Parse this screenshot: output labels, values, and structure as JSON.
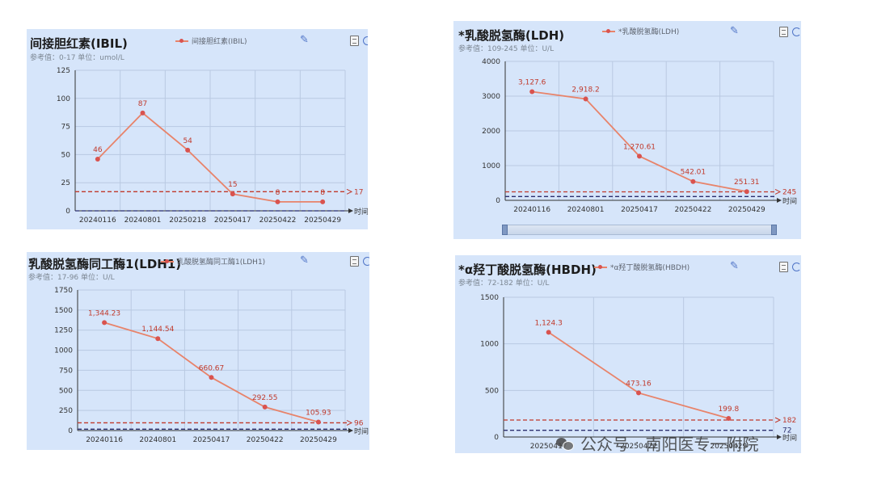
{
  "colors": {
    "panel_bg": "#d6e5fa",
    "line": "#e8836a",
    "point": "#d9534f",
    "label": "#c0392b",
    "upper_ref": "#c0392b",
    "lower_ref": "#2b2f6e",
    "grid": "#b9c9e2",
    "axis": "#333333"
  },
  "icons": [
    "pencil-edit-icon",
    "document-icon",
    "refresh-icon",
    "wechat-icon"
  ],
  "watermark": {
    "left": "公众号",
    "dot": "·",
    "right": "南阳医专一附院"
  },
  "chart_data": [
    {
      "type": "line",
      "title": "间接胆红素(IBIL)",
      "legend": "间接胆红素(IBIL)",
      "reference": "参考值：0-17  单位：umol/L",
      "categories": [
        "20240116",
        "20240801",
        "20250218",
        "20250417",
        "20250422",
        "20250429"
      ],
      "values": [
        46,
        87,
        54,
        15,
        8,
        8
      ],
      "data_labels": [
        "46",
        "87",
        "54",
        "15",
        "8",
        "8"
      ],
      "ylim": [
        0,
        125
      ],
      "yticks": [
        "0",
        "25",
        "50",
        "75",
        "100",
        "125"
      ],
      "ref_upper": 17,
      "ref_upper_label": "17",
      "ref_lower": 0,
      "x_unit": "时间",
      "grid": true
    },
    {
      "type": "line",
      "title": "*乳酸脱氢酶(LDH)",
      "legend": "*乳酸脱氢酶(LDH)",
      "reference": "参考值：109-245  单位：U/L",
      "categories": [
        "20240116",
        "20240801",
        "20250417",
        "20250422",
        "20250429"
      ],
      "values": [
        3127.6,
        2918.2,
        1270.61,
        542.01,
        251.31
      ],
      "data_labels": [
        "3,127.6",
        "2,918.2",
        "1,270.61",
        "542.01",
        "251.31"
      ],
      "ylim": [
        0,
        4000
      ],
      "yticks": [
        "0",
        "1000",
        "2000",
        "3000",
        "4000"
      ],
      "ref_upper": 245,
      "ref_upper_label": "245",
      "ref_lower": 109,
      "x_unit": "时间",
      "grid": true,
      "slider": true
    },
    {
      "type": "line",
      "title": "乳酸脱氢酶同工酶1(LDH1)",
      "legend": "乳酸脱氢酶同工酶1(LDH1)",
      "reference": "参考值：17-96  单位：U/L",
      "categories": [
        "20240116",
        "20240801",
        "20250417",
        "20250422",
        "20250429"
      ],
      "values": [
        1344.23,
        1144.54,
        660.67,
        292.55,
        105.93
      ],
      "data_labels": [
        "1,344.23",
        "1,144.54",
        "660.67",
        "292.55",
        "105.93"
      ],
      "ylim": [
        0,
        1750
      ],
      "yticks": [
        "0",
        "250",
        "500",
        "750",
        "1000",
        "1250",
        "1500",
        "1750"
      ],
      "ref_upper": 96,
      "ref_upper_label": "96",
      "ref_lower": 17,
      "x_unit": "时间",
      "grid": true
    },
    {
      "type": "line",
      "title": "*α羟丁酸脱氢酶(HBDH)",
      "legend": "*α羟丁酸脱氢酶(HBDH)",
      "reference": "参考值：72-182  单位：U/L",
      "categories": [
        "20250417",
        "20250422",
        "20250429"
      ],
      "values": [
        1124.3,
        473.16,
        199.8
      ],
      "data_labels": [
        "1,124.3",
        "473.16",
        "199.8"
      ],
      "ylim": [
        0,
        1500
      ],
      "yticks": [
        "0",
        "500",
        "1000",
        "1500"
      ],
      "ref_upper": 182,
      "ref_upper_label": "182",
      "ref_lower": 72,
      "ref_lower_label": "72",
      "x_unit": "时间",
      "grid": true
    }
  ]
}
